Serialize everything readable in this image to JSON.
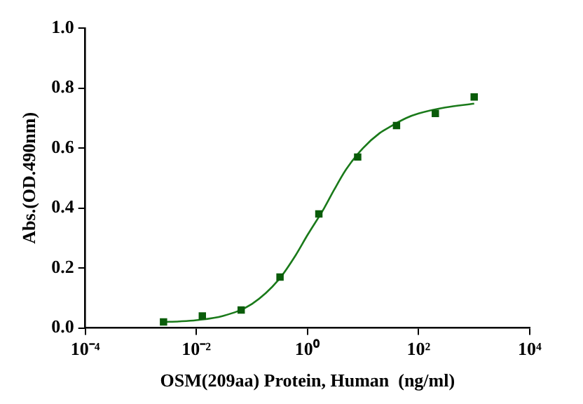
{
  "chart_data": {
    "type": "scatter",
    "xlabel": "OSM(209aa) Protein, Human  (ng/ml)",
    "ylabel": "Abs.(OD.490nm)",
    "log": "x",
    "grid": false,
    "legend": false,
    "marker": "square",
    "xlim": [
      0.0001,
      10000
    ],
    "xticks": [
      {
        "value": 0.0001,
        "label": "10⁻⁴"
      },
      {
        "value": 0.01,
        "label": "10⁻²"
      },
      {
        "value": 1,
        "label": "10⁰"
      },
      {
        "value": 100,
        "label": "10²"
      },
      {
        "value": 10000,
        "label": "10⁴"
      }
    ],
    "ylim": [
      0,
      1
    ],
    "yticks": [
      {
        "value": 0,
        "label": "0.0"
      },
      {
        "value": 0.2,
        "label": "0.2"
      },
      {
        "value": 0.4,
        "label": "0.4"
      },
      {
        "value": 0.6,
        "label": "0.6"
      },
      {
        "value": 0.8,
        "label": "0.8"
      },
      {
        "value": 1,
        "label": "1.0"
      }
    ],
    "x": [
      0.00256,
      0.0128,
      0.064,
      0.32,
      1.6,
      8,
      40,
      200,
      1000
    ],
    "series": [
      {
        "color": "#0a5c0a",
        "values": [
          0.02,
          0.04,
          0.06,
          0.17,
          0.38,
          0.57,
          0.675,
          0.715,
          0.77
        ]
      },
      {
        "type": "line",
        "marker": "none",
        "color": "#1a7a1a",
        "x": [
          0.00256,
          0.005,
          0.01,
          0.03,
          0.1,
          0.3,
          0.6,
          1,
          2,
          3,
          5,
          10,
          20,
          30,
          60,
          100,
          300,
          1000
        ],
        "values": [
          0.02,
          0.022,
          0.026,
          0.04,
          0.08,
          0.16,
          0.24,
          0.31,
          0.4,
          0.46,
          0.53,
          0.6,
          0.65,
          0.67,
          0.7,
          0.715,
          0.735,
          0.748
        ]
      }
    ]
  }
}
